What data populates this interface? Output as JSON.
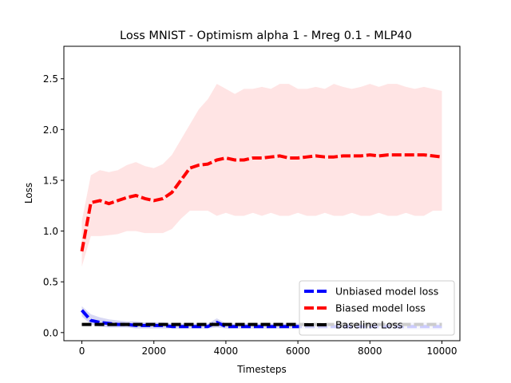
{
  "chart_data": {
    "type": "line",
    "title": "Loss MNIST - Optimism alpha 1 - Mreg 0.1 - MLP40",
    "xlabel": "Timesteps",
    "ylabel": "Loss",
    "xlim": [
      -500,
      10500
    ],
    "ylim": [
      -0.08,
      2.82
    ],
    "xticks": [
      0,
      2000,
      4000,
      6000,
      8000,
      10000
    ],
    "yticks": [
      0.0,
      0.5,
      1.0,
      1.5,
      2.0,
      2.5
    ],
    "xtick_labels": [
      "0",
      "2000",
      "4000",
      "6000",
      "8000",
      "10000"
    ],
    "ytick_labels": [
      "0.0",
      "0.5",
      "1.0",
      "1.5",
      "2.0",
      "2.5"
    ],
    "grid": false,
    "legend_position": "lower-right",
    "x": [
      0,
      250,
      500,
      750,
      1000,
      1250,
      1500,
      1750,
      2000,
      2250,
      2500,
      2750,
      3000,
      3250,
      3500,
      3750,
      4000,
      4250,
      4500,
      4750,
      5000,
      5250,
      5500,
      5750,
      6000,
      6250,
      6500,
      6750,
      7000,
      7250,
      7500,
      7750,
      8000,
      8250,
      8500,
      8750,
      9000,
      9250,
      9500,
      9750,
      10000
    ],
    "series": [
      {
        "name": "Unbiased model loss",
        "color": "#0000ff",
        "style": "dashed",
        "values": [
          0.22,
          0.12,
          0.1,
          0.09,
          0.08,
          0.08,
          0.07,
          0.07,
          0.07,
          0.07,
          0.06,
          0.06,
          0.06,
          0.06,
          0.06,
          0.1,
          0.06,
          0.06,
          0.06,
          0.06,
          0.06,
          0.06,
          0.06,
          0.06,
          0.06,
          0.06,
          0.06,
          0.06,
          0.06,
          0.06,
          0.06,
          0.06,
          0.06,
          0.06,
          0.06,
          0.06,
          0.06,
          0.06,
          0.06,
          0.06,
          0.06
        ],
        "band_color": "#c8c8f0",
        "band_upper": [
          0.26,
          0.18,
          0.15,
          0.13,
          0.12,
          0.11,
          0.11,
          0.1,
          0.1,
          0.1,
          0.09,
          0.09,
          0.09,
          0.09,
          0.09,
          0.14,
          0.09,
          0.09,
          0.09,
          0.09,
          0.09,
          0.09,
          0.09,
          0.09,
          0.09,
          0.09,
          0.09,
          0.09,
          0.09,
          0.09,
          0.09,
          0.09,
          0.09,
          0.09,
          0.09,
          0.1,
          0.1,
          0.1,
          0.1,
          0.1,
          0.1
        ],
        "band_lower": [
          0.16,
          0.08,
          0.06,
          0.05,
          0.05,
          0.05,
          0.04,
          0.04,
          0.04,
          0.04,
          0.04,
          0.04,
          0.04,
          0.04,
          0.04,
          0.05,
          0.04,
          0.04,
          0.04,
          0.04,
          0.04,
          0.04,
          0.04,
          0.04,
          0.04,
          0.04,
          0.04,
          0.04,
          0.04,
          0.04,
          0.04,
          0.04,
          0.04,
          0.04,
          0.04,
          0.03,
          0.03,
          0.03,
          0.03,
          0.03,
          0.03
        ]
      },
      {
        "name": "Biased model loss",
        "color": "#ff0000",
        "style": "dashed",
        "values": [
          0.8,
          1.28,
          1.3,
          1.27,
          1.3,
          1.33,
          1.35,
          1.32,
          1.3,
          1.32,
          1.38,
          1.5,
          1.62,
          1.65,
          1.66,
          1.7,
          1.72,
          1.7,
          1.7,
          1.72,
          1.72,
          1.73,
          1.74,
          1.72,
          1.72,
          1.73,
          1.74,
          1.73,
          1.73,
          1.74,
          1.74,
          1.74,
          1.75,
          1.74,
          1.75,
          1.75,
          1.75,
          1.75,
          1.75,
          1.74,
          1.73
        ],
        "band_color": "#ffd8d8",
        "band_upper": [
          1.1,
          1.55,
          1.6,
          1.58,
          1.6,
          1.65,
          1.68,
          1.64,
          1.62,
          1.66,
          1.75,
          1.9,
          2.05,
          2.2,
          2.3,
          2.45,
          2.4,
          2.35,
          2.4,
          2.4,
          2.42,
          2.4,
          2.45,
          2.45,
          2.4,
          2.4,
          2.42,
          2.4,
          2.45,
          2.42,
          2.4,
          2.42,
          2.45,
          2.42,
          2.45,
          2.45,
          2.42,
          2.4,
          2.42,
          2.4,
          2.38
        ],
        "band_lower": [
          0.65,
          0.95,
          0.95,
          0.96,
          0.97,
          1.0,
          1.0,
          0.98,
          0.98,
          0.98,
          1.02,
          1.12,
          1.2,
          1.2,
          1.2,
          1.15,
          1.18,
          1.15,
          1.15,
          1.18,
          1.15,
          1.18,
          1.15,
          1.15,
          1.18,
          1.15,
          1.15,
          1.18,
          1.15,
          1.15,
          1.18,
          1.15,
          1.15,
          1.18,
          1.15,
          1.15,
          1.18,
          1.15,
          1.15,
          1.2,
          1.2
        ]
      },
      {
        "name": "Baseline Loss",
        "color": "#000000",
        "style": "dashed",
        "values": [
          0.08,
          0.08,
          0.08,
          0.08,
          0.08,
          0.08,
          0.08,
          0.08,
          0.08,
          0.08,
          0.08,
          0.08,
          0.08,
          0.08,
          0.08,
          0.08,
          0.08,
          0.08,
          0.08,
          0.08,
          0.08,
          0.08,
          0.08,
          0.08,
          0.08,
          0.08,
          0.08,
          0.08,
          0.08,
          0.08,
          0.08,
          0.08,
          0.08,
          0.08,
          0.08,
          0.08,
          0.08,
          0.08,
          0.08,
          0.08,
          0.08
        ]
      }
    ]
  }
}
